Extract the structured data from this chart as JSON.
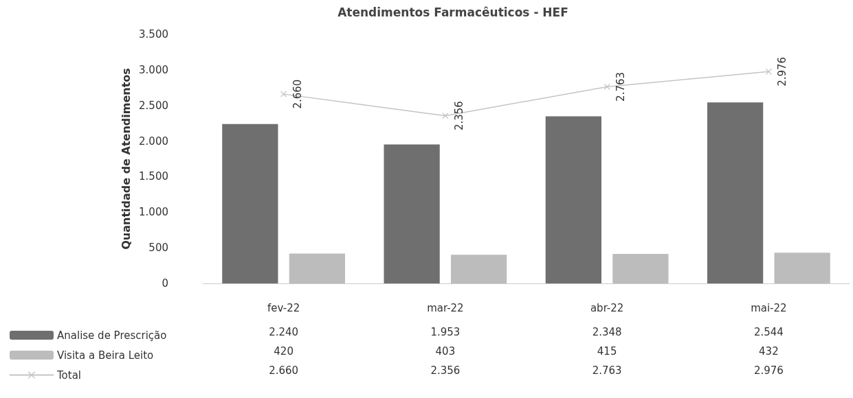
{
  "chart_data": {
    "type": "bar",
    "title": "Atendimentos Farmacêuticos - HEF",
    "ylabel": "Quantidade de Atendimentos",
    "categories": [
      "fev-22",
      "mar-22",
      "abr-22",
      "mai-22"
    ],
    "series": [
      {
        "name": "Analise de Prescrição",
        "color": "#6f6f6f",
        "values": [
          2240,
          1953,
          2348,
          2544
        ],
        "value_labels": [
          "2.240",
          "1.953",
          "2.348",
          "2.544"
        ]
      },
      {
        "name": "Visita a Beira Leito",
        "color": "#bcbcbc",
        "values": [
          420,
          403,
          415,
          432
        ],
        "value_labels": [
          "420",
          "403",
          "415",
          "432"
        ]
      },
      {
        "name": "Total",
        "type": "line",
        "color": "#c4c4c4",
        "marker": "cross",
        "values": [
          2660,
          2356,
          2763,
          2976
        ],
        "value_labels": [
          "2.660",
          "2.356",
          "2.763",
          "2.976"
        ]
      }
    ],
    "ylim": [
      0,
      3500
    ],
    "yticks": [
      {
        "value": 0,
        "label": "0"
      },
      {
        "value": 500,
        "label": "500"
      },
      {
        "value": 1000,
        "label": "1.000"
      },
      {
        "value": 1500,
        "label": "1.500"
      },
      {
        "value": 2000,
        "label": "2.000"
      },
      {
        "value": 2500,
        "label": "2.500"
      },
      {
        "value": 3000,
        "label": "3.000"
      },
      {
        "value": 3500,
        "label": "3.500"
      }
    ],
    "grid": false,
    "legend": "bottom left"
  }
}
